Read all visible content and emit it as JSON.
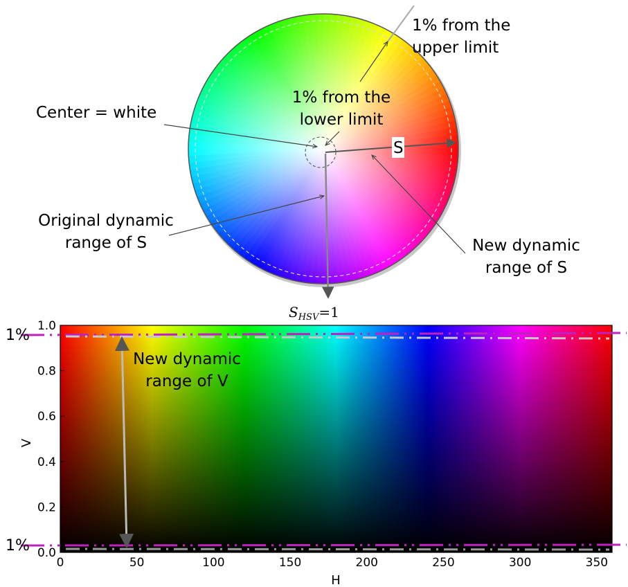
{
  "wheel": {
    "annotations": {
      "upper_limit": [
        "1% from the",
        "upper limit"
      ],
      "lower_limit": [
        "1% from the",
        "lower limit"
      ],
      "center": "Center = white",
      "s_marker": "S",
      "original_range": [
        "Original dynamic",
        "range of S"
      ],
      "new_range": [
        "New dynamic",
        "range of S"
      ]
    },
    "s_hsv_label": {
      "base": "S",
      "sub": "HSV",
      "rhs": "=1"
    }
  },
  "plot": {
    "ylabel": "V",
    "xlabel": "H",
    "x_ticks": [
      "0",
      "50",
      "100",
      "150",
      "200",
      "250",
      "300",
      "350"
    ],
    "y_ticks": [
      "0.0",
      "0.2",
      "0.4",
      "0.6",
      "0.8",
      "1.0"
    ],
    "new_range_label": [
      "New dynamic",
      "range of V"
    ],
    "upper_pct": "1%",
    "lower_pct": "1%"
  },
  "chart_data": {
    "type": "heatmap",
    "x_range": [
      0,
      360
    ],
    "y_range": [
      0,
      1
    ],
    "xlabel": "H",
    "ylabel": "V",
    "limit_lines_v": [
      0.99,
      0.01
    ],
    "colors": {
      "limit_line": "#c020c0"
    }
  }
}
